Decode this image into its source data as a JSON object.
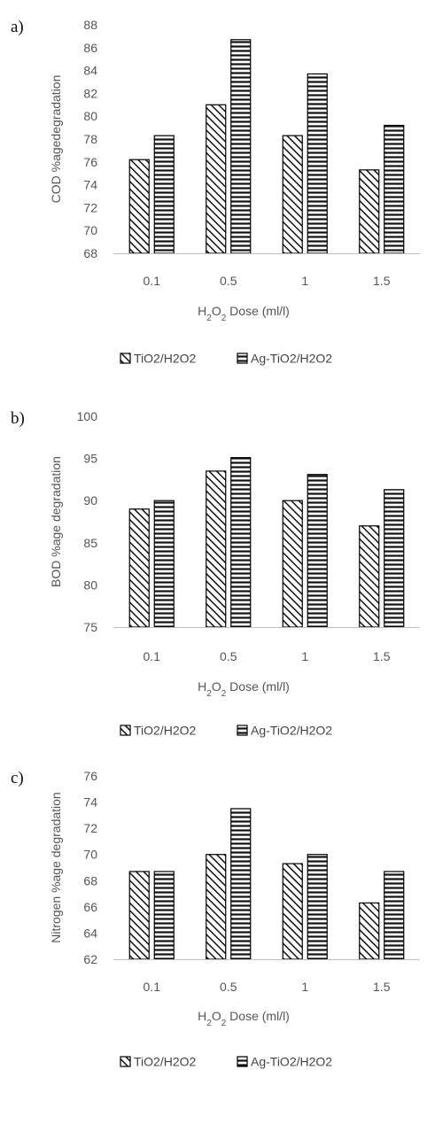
{
  "chart_data": [
    {
      "panel": "a)",
      "type": "bar",
      "categories": [
        "0.1",
        "0.5",
        "1",
        "1.5"
      ],
      "series": [
        {
          "name": "TiO2/H2O2",
          "values": [
            76.2,
            81.0,
            78.3,
            75.3
          ]
        },
        {
          "name": "Ag-TiO2/H2O2",
          "values": [
            78.3,
            86.7,
            83.7,
            79.2
          ]
        }
      ],
      "ylim": [
        68,
        88
      ],
      "yticks": [
        68,
        70,
        72,
        74,
        76,
        78,
        80,
        82,
        84,
        86,
        88
      ],
      "ylabel": "COD %agedegradation",
      "xlabel_main": "H",
      "xlabel_sub1": "2",
      "xlabel_mid": "O",
      "xlabel_sub2": "2",
      "xlabel_end": " Dose (ml/l)",
      "legend": "bottom"
    },
    {
      "panel": "b)",
      "type": "bar",
      "categories": [
        "0.1",
        "0.5",
        "1",
        "1.5"
      ],
      "series": [
        {
          "name": "TiO2/H2O2",
          "values": [
            89.0,
            93.5,
            90.0,
            87.0
          ]
        },
        {
          "name": "Ag-TiO2/H2O2",
          "values": [
            90.0,
            95.1,
            93.1,
            91.3
          ]
        }
      ],
      "ylim": [
        75,
        100
      ],
      "yticks": [
        75,
        80,
        85,
        90,
        95,
        100
      ],
      "ylabel": "BOD %age degradation",
      "xlabel_main": "H",
      "xlabel_sub1": "2",
      "xlabel_mid": "O",
      "xlabel_sub2": "2",
      "xlabel_end": " Dose (ml/l)",
      "legend": "bottom"
    },
    {
      "panel": "c)",
      "type": "bar",
      "categories": [
        "0.1",
        "0.5",
        "1",
        "1.5"
      ],
      "series": [
        {
          "name": "TiO2/H2O2",
          "values": [
            68.7,
            70.0,
            69.3,
            66.3
          ]
        },
        {
          "name": "Ag-TiO2/H2O2",
          "values": [
            68.7,
            73.5,
            70.0,
            68.7
          ]
        }
      ],
      "ylim": [
        62,
        76
      ],
      "yticks": [
        62,
        64,
        66,
        68,
        70,
        72,
        74,
        76
      ],
      "ylabel": "Nitrogen %age degradation",
      "xlabel_main": "H",
      "xlabel_sub1": "2",
      "xlabel_mid": "O",
      "xlabel_sub2": "2",
      "xlabel_end": " Dose (ml/l)",
      "legend": "bottom"
    }
  ],
  "colors": {
    "bar_stroke": "#000000",
    "bar_fill": "#ffffff",
    "pattern_ink": "#111111",
    "axis_line": "#bfbfbf",
    "text": "#555555"
  }
}
